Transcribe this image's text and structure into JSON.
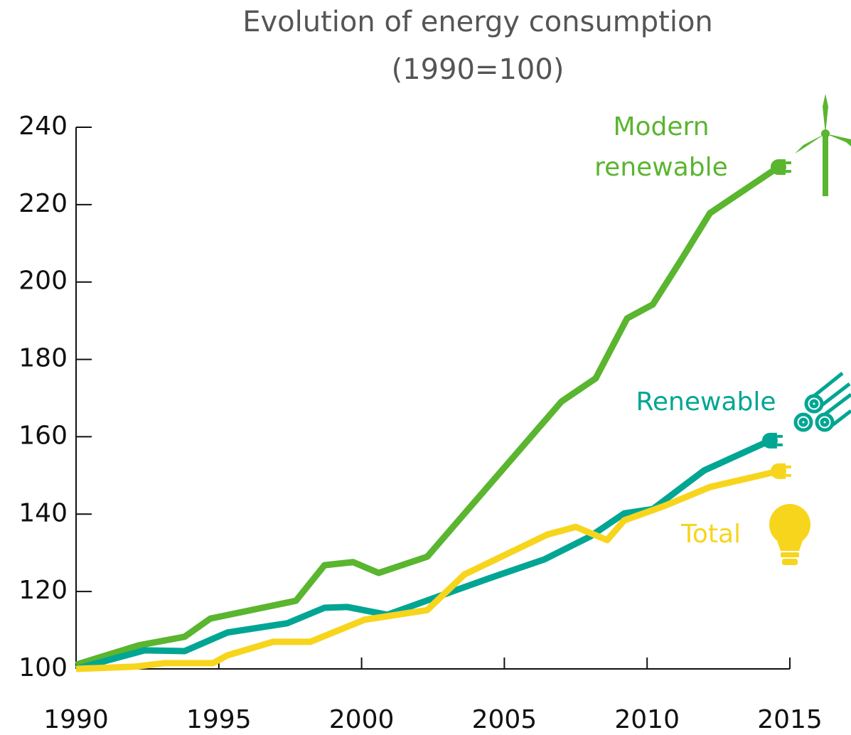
{
  "chart_data": {
    "type": "line",
    "title": "Evolution of energy consumption",
    "subtitle": "(1990=100)",
    "xlim": [
      1990,
      2015
    ],
    "xticks": [
      1990,
      1995,
      2000,
      2005,
      2010,
      2015
    ],
    "ylim": [
      100,
      240
    ],
    "yticks": [
      100,
      120,
      140,
      160,
      180,
      200,
      220,
      240
    ],
    "series": [
      {
        "name": "Modern renewable",
        "color": "#5ab52f",
        "x": [
          1990,
          1992.2,
          1993.8,
          1994.7,
          1997.7,
          1998.7,
          1999.7,
          2000.6,
          2002.3,
          2007.0,
          2008.2,
          2009.3,
          2010.2,
          2011.2,
          2012.2,
          2014.6
        ],
        "values": [
          101.1,
          106.1,
          108.3,
          113.0,
          117.6,
          126.8,
          127.6,
          124.8,
          129.0,
          169.1,
          175.1,
          190.6,
          194.2,
          205.8,
          217.8,
          229.7
        ]
      },
      {
        "name": "Renewable",
        "color": "#00a693",
        "x": [
          1990,
          1992.4,
          1993.8,
          1995.3,
          1997.4,
          1998.7,
          1999.5,
          2000.9,
          2004.5,
          2006.4,
          2008.0,
          2009.2,
          2010.2,
          2012.0,
          2014.3
        ],
        "values": [
          100,
          104.8,
          104.6,
          109.4,
          111.8,
          115.8,
          116.0,
          114.0,
          123.5,
          128.3,
          134.2,
          140.2,
          141.3,
          151.3,
          159.0
        ]
      },
      {
        "name": "Total",
        "color": "#f7d51d",
        "x": [
          1990,
          1992.1,
          1993.1,
          1994.8,
          1995.3,
          1996.9,
          1998.2,
          2000.1,
          2002.3,
          2003.6,
          2006.5,
          2007.5,
          2008.6,
          2009.2,
          2010.6,
          2012.2,
          2014.6
        ],
        "values": [
          100,
          100.6,
          101.5,
          101.5,
          103.5,
          107.0,
          107.0,
          112.7,
          115.2,
          124.4,
          134.7,
          136.7,
          133.3,
          138.4,
          142.1,
          147.0,
          151.1
        ]
      }
    ]
  }
}
